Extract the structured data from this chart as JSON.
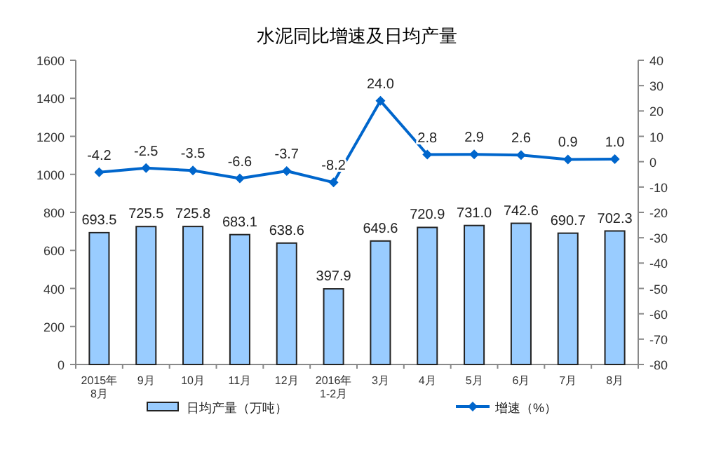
{
  "chart_data": {
    "type": "bar",
    "title": "水泥同比增速及日均产量",
    "categories": [
      "2015年\n8月",
      "9月",
      "10月",
      "11月",
      "12月",
      "2016年\n1-2月",
      "3月",
      "4月",
      "5月",
      "6月",
      "7月",
      "8月"
    ],
    "series": [
      {
        "name": "日均产量（万吨）",
        "color": "#99ccff",
        "values": [
          693.5,
          725.5,
          725.8,
          683.1,
          638.6,
          397.9,
          649.6,
          720.9,
          731.0,
          742.6,
          690.7,
          702.3
        ],
        "value_labels": [
          "693.5",
          "725.5",
          "725.8",
          "683.1",
          "638.6",
          "397.9",
          "649.6",
          "720.9",
          "731.0",
          "742.6",
          "690.7",
          "702.3"
        ]
      },
      {
        "name": "增速（%）",
        "type": "line",
        "axis": "y2",
        "color": "#0066cc",
        "marker": "diamond",
        "values": [
          -4.2,
          -2.5,
          -3.5,
          -6.6,
          -3.7,
          -8.2,
          24.0,
          2.8,
          2.9,
          2.6,
          0.9,
          1.0
        ],
        "value_labels": [
          "-4.2",
          "-2.5",
          "-3.5",
          "-6.6",
          "-3.7",
          "-8.2",
          "24.0",
          "2.8",
          "2.9",
          "2.6",
          "0.9",
          "1.0"
        ]
      }
    ],
    "ylim": [
      0,
      1600
    ],
    "yticks": [
      0,
      200,
      400,
      600,
      800,
      1000,
      1200,
      1400,
      1600
    ],
    "y2lim": [
      -80,
      40
    ],
    "y2ticks": [
      -80,
      -70,
      -60,
      -50,
      -40,
      -30,
      -20,
      -10,
      0,
      10,
      20,
      30,
      40
    ],
    "legend": "bottom"
  }
}
